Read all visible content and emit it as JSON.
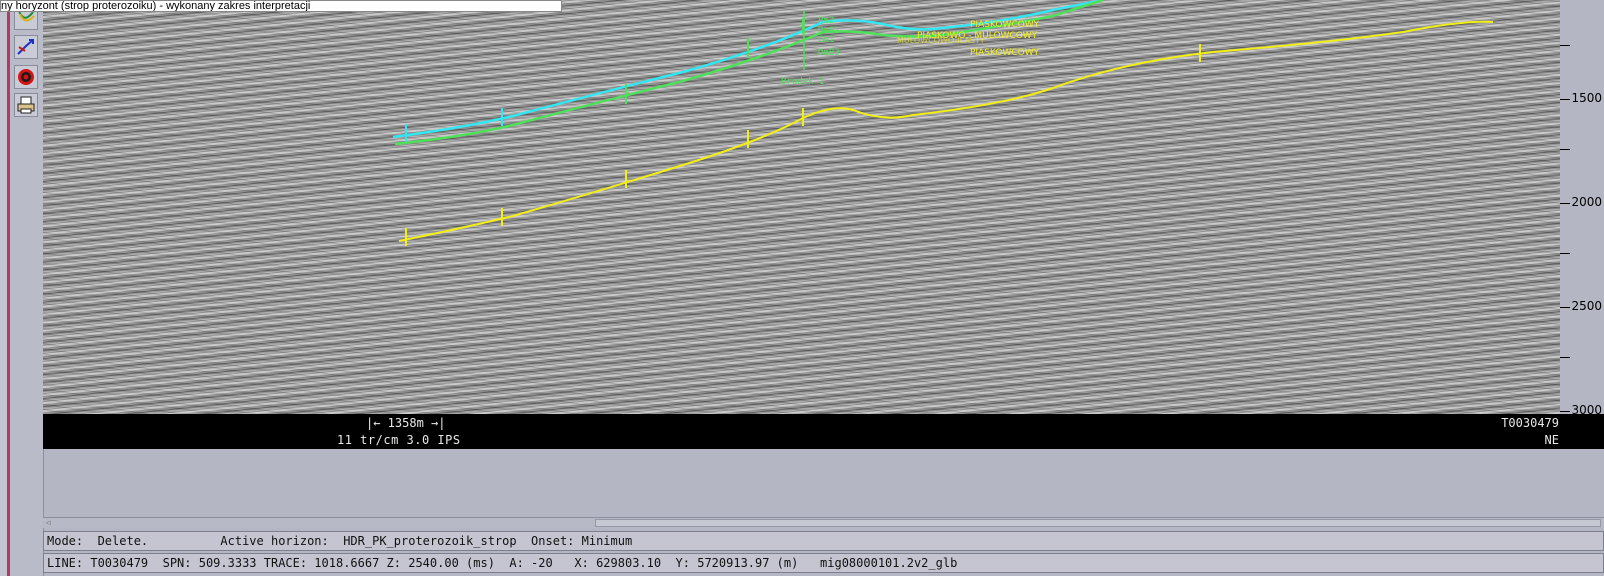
{
  "title_tip": "ny horyzont (strop proterozoiku) - wykonany zakres interpretacji",
  "toolbar": {
    "tools": [
      {
        "icon": "pick-horizon-icon"
      },
      {
        "icon": "autotrack-icon"
      },
      {
        "icon": "target-icon"
      },
      {
        "icon": "print-icon"
      }
    ]
  },
  "section": {
    "well_labels": {
      "top": "Pm2",
      "a": "DmS1",
      "b": "Cm1",
      "c": "DmB3",
      "name": "Brodek 1",
      "litho1": "PIASKOWCOWY",
      "litho2": "PIASKOWO - MULOWCOWY",
      "litho3": "MULOWCOWO-ILASTY",
      "litho4": "PIASKOWCOWY"
    },
    "horizon_colors": {
      "cyan": "#33e6f2",
      "green": "#4fe05a",
      "yellow": "#f2ef16"
    },
    "z_labels": [
      "1500",
      "2000",
      "2500",
      "3000"
    ]
  },
  "info_bar": {
    "scale": "|← 1358m →|",
    "trace_info": "11 tr/cm 3.0 IPS",
    "line_name": "T0030479",
    "direction": "NE"
  },
  "status": {
    "mode": "Mode:  Delete.          Active horizon:  HDR_PK_proterozoik_strop  Onset: Minimum",
    "coords": "LINE: T0030479  SPN: 509.3333 TRACE: 1018.6667 Z: 2540.00 (ms)  A: -20   X: 629803.10  Y: 5720913.97 (m)   mig08000101.2v2_glb"
  }
}
